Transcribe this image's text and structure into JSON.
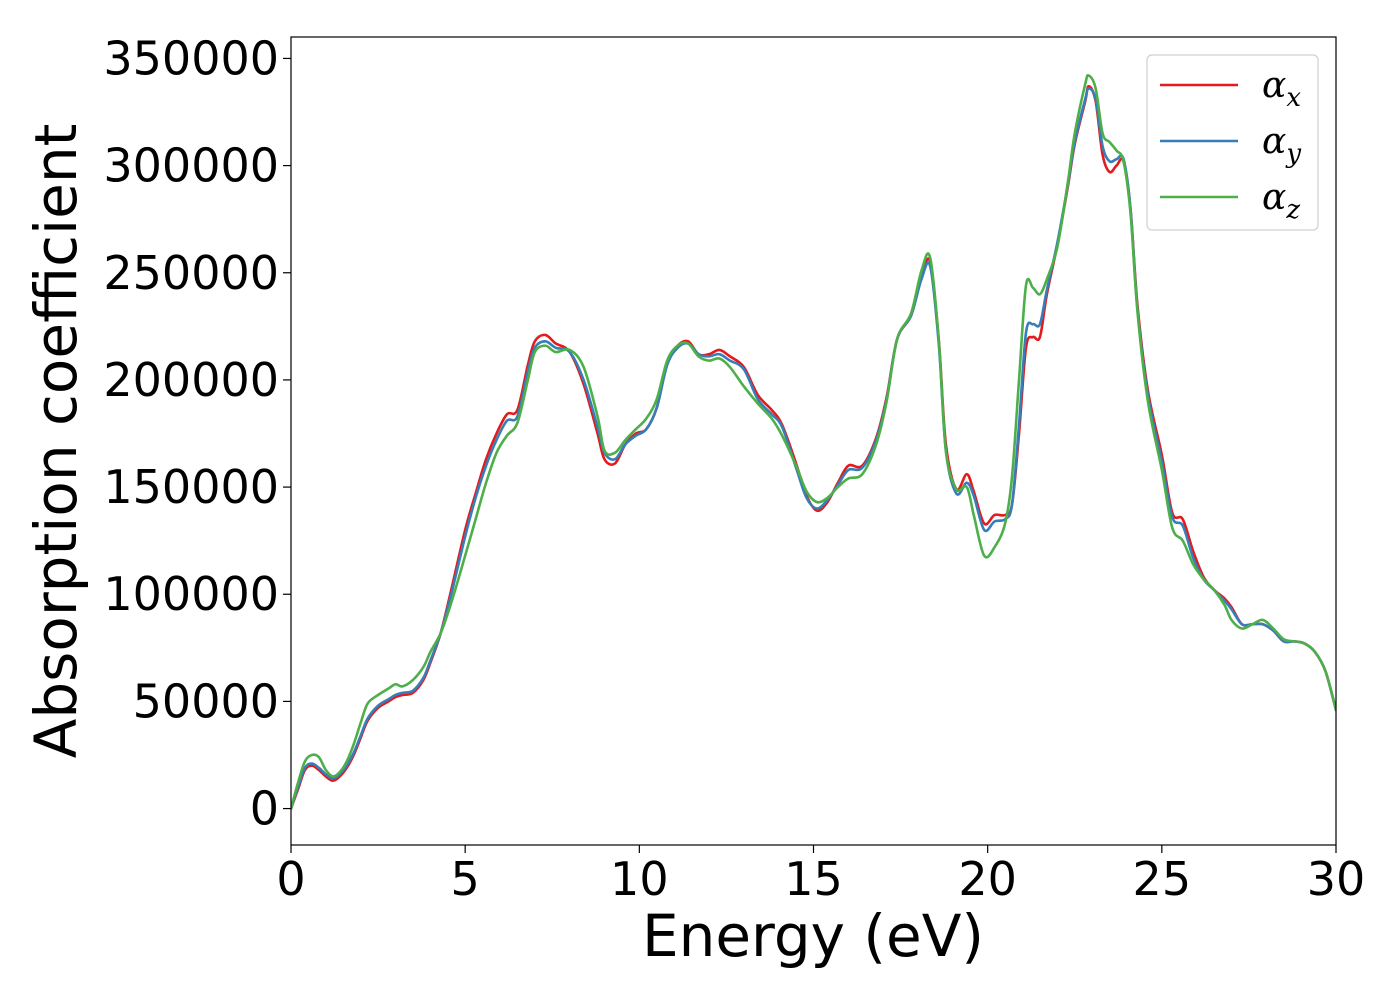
{
  "chart_data": {
    "type": "line",
    "title": "",
    "xlabel": "Energy (eV)",
    "ylabel": "Absorption coefficient",
    "xlim": [
      0,
      30
    ],
    "ylim": [
      -17000,
      360000
    ],
    "xticks": [
      0,
      5,
      10,
      15,
      20,
      25,
      30
    ],
    "yticks": [
      0,
      50000,
      100000,
      150000,
      200000,
      250000,
      300000,
      350000
    ],
    "grid": false,
    "legend_position": "top-right",
    "series": [
      {
        "name": "α_x",
        "base": "α",
        "sub": "x",
        "color": "#e41a1c",
        "x": [
          0,
          0.2,
          0.4,
          0.6,
          0.8,
          1.0,
          1.2,
          1.4,
          1.6,
          1.8,
          2.0,
          2.2,
          2.5,
          2.8,
          3.0,
          3.2,
          3.5,
          3.8,
          4.0,
          4.3,
          4.6,
          5.0,
          5.3,
          5.6,
          5.9,
          6.2,
          6.5,
          6.8,
          7.0,
          7.3,
          7.6,
          8.0,
          8.4,
          8.8,
          9.0,
          9.3,
          9.6,
          9.9,
          10.2,
          10.5,
          10.8,
          11.1,
          11.4,
          11.7,
          12.0,
          12.3,
          12.6,
          13.0,
          13.4,
          13.8,
          14.1,
          14.5,
          14.8,
          15.1,
          15.4,
          15.7,
          16.0,
          16.4,
          16.8,
          17.1,
          17.4,
          17.8,
          18.1,
          18.35,
          18.6,
          18.8,
          19.1,
          19.4,
          19.6,
          19.9,
          20.2,
          20.5,
          20.7,
          20.9,
          21.1,
          21.3,
          21.5,
          21.7,
          22.0,
          22.3,
          22.5,
          22.8,
          22.9,
          23.1,
          23.3,
          23.5,
          23.7,
          23.9,
          24.1,
          24.3,
          24.6,
          25.0,
          25.3,
          25.6,
          25.9,
          26.2,
          26.5,
          26.8,
          27.0,
          27.3,
          27.6,
          27.9,
          28.2,
          28.5,
          28.8,
          29.1,
          29.4,
          29.7,
          30.0
        ],
        "y": [
          0,
          9000,
          18000,
          20000,
          18000,
          15000,
          13000,
          15000,
          19000,
          25000,
          33000,
          41000,
          47000,
          50000,
          52000,
          53000,
          54000,
          60000,
          68000,
          82000,
          102000,
          130000,
          147000,
          163000,
          175000,
          184000,
          186000,
          207000,
          218000,
          221000,
          217000,
          213000,
          198000,
          175000,
          163000,
          161000,
          170000,
          175000,
          177000,
          187000,
          208000,
          216000,
          218000,
          212000,
          212000,
          214000,
          211000,
          206000,
          193000,
          186000,
          179000,
          161000,
          146000,
          139000,
          143000,
          152000,
          160000,
          160000,
          173000,
          192000,
          219000,
          230000,
          248000,
          255000,
          218000,
          170000,
          149000,
          156000,
          148000,
          133000,
          137000,
          137000,
          142000,
          175000,
          215000,
          220000,
          220000,
          240000,
          263000,
          290000,
          310000,
          330000,
          337000,
          330000,
          305000,
          297000,
          300000,
          302000,
          280000,
          235000,
          195000,
          165000,
          138000,
          135000,
          120000,
          108000,
          102000,
          98000,
          94000,
          86000,
          86000,
          86000,
          83000,
          78000,
          78000,
          77000,
          73000,
          64000,
          46000
        ]
      },
      {
        "name": "α_y",
        "base": "α",
        "sub": "y",
        "color": "#377eb8",
        "x": [
          0,
          0.2,
          0.4,
          0.6,
          0.8,
          1.0,
          1.2,
          1.4,
          1.6,
          1.8,
          2.0,
          2.2,
          2.5,
          2.8,
          3.0,
          3.2,
          3.5,
          3.8,
          4.0,
          4.3,
          4.6,
          5.0,
          5.3,
          5.6,
          5.9,
          6.2,
          6.5,
          6.8,
          7.0,
          7.3,
          7.6,
          8.0,
          8.4,
          8.8,
          9.0,
          9.3,
          9.6,
          9.9,
          10.2,
          10.5,
          10.8,
          11.1,
          11.4,
          11.7,
          12.0,
          12.3,
          12.6,
          13.0,
          13.4,
          13.8,
          14.1,
          14.5,
          14.8,
          15.1,
          15.4,
          15.7,
          16.0,
          16.4,
          16.8,
          17.1,
          17.4,
          17.8,
          18.1,
          18.35,
          18.6,
          18.8,
          19.1,
          19.4,
          19.6,
          19.9,
          20.2,
          20.5,
          20.7,
          20.9,
          21.1,
          21.3,
          21.5,
          21.7,
          22.0,
          22.3,
          22.5,
          22.8,
          22.9,
          23.1,
          23.3,
          23.5,
          23.7,
          23.9,
          24.1,
          24.3,
          24.6,
          25.0,
          25.3,
          25.6,
          25.9,
          26.2,
          26.5,
          26.8,
          27.0,
          27.3,
          27.6,
          27.9,
          28.2,
          28.5,
          28.8,
          29.1,
          29.4,
          29.7,
          30.0
        ],
        "y": [
          0,
          10000,
          19000,
          21000,
          19000,
          16000,
          14000,
          16000,
          20000,
          26000,
          34000,
          42000,
          48000,
          51000,
          53000,
          54000,
          55000,
          61000,
          69000,
          82000,
          100000,
          127000,
          145000,
          160000,
          172000,
          181000,
          183000,
          204000,
          215000,
          218000,
          215000,
          213000,
          200000,
          178000,
          166000,
          163000,
          170000,
          174000,
          177000,
          187000,
          207000,
          215000,
          217000,
          212000,
          211000,
          212000,
          209000,
          205000,
          191000,
          184000,
          178000,
          159000,
          145000,
          140000,
          144000,
          151000,
          158000,
          159000,
          172000,
          191000,
          219000,
          230000,
          247000,
          253000,
          216000,
          167000,
          147000,
          152000,
          146000,
          130000,
          134000,
          135000,
          142000,
          179000,
          222000,
          226000,
          226000,
          242000,
          264000,
          291000,
          311000,
          331000,
          336000,
          331000,
          309000,
          302000,
          303000,
          303000,
          280000,
          233000,
          193000,
          162000,
          136000,
          132000,
          117000,
          107000,
          102000,
          97000,
          93000,
          86000,
          86000,
          86000,
          83000,
          78000,
          78000,
          77000,
          73000,
          64000,
          46000
        ]
      },
      {
        "name": "α_z",
        "base": "α",
        "sub": "z",
        "color": "#4daf4a",
        "x": [
          0,
          0.2,
          0.4,
          0.6,
          0.8,
          1.0,
          1.2,
          1.4,
          1.6,
          1.8,
          2.0,
          2.2,
          2.5,
          2.8,
          3.0,
          3.2,
          3.5,
          3.8,
          4.0,
          4.3,
          4.6,
          5.0,
          5.3,
          5.6,
          5.9,
          6.2,
          6.5,
          6.8,
          7.0,
          7.3,
          7.6,
          8.0,
          8.4,
          8.8,
          9.0,
          9.3,
          9.6,
          9.9,
          10.2,
          10.5,
          10.8,
          11.1,
          11.4,
          11.7,
          12.0,
          12.3,
          12.6,
          13.0,
          13.4,
          13.8,
          14.1,
          14.5,
          14.8,
          15.1,
          15.4,
          15.7,
          16.0,
          16.4,
          16.8,
          17.1,
          17.4,
          17.8,
          18.1,
          18.35,
          18.6,
          18.8,
          19.1,
          19.4,
          19.6,
          19.9,
          20.2,
          20.5,
          20.7,
          20.9,
          21.1,
          21.3,
          21.5,
          21.7,
          22.0,
          22.3,
          22.5,
          22.8,
          22.9,
          23.1,
          23.3,
          23.5,
          23.7,
          23.9,
          24.1,
          24.3,
          24.6,
          25.0,
          25.3,
          25.6,
          25.9,
          26.2,
          26.5,
          26.8,
          27.0,
          27.3,
          27.6,
          27.9,
          28.2,
          28.5,
          28.8,
          29.1,
          29.4,
          29.7,
          30.0
        ],
        "y": [
          0,
          12000,
          22000,
          25000,
          24000,
          18000,
          15000,
          17000,
          22000,
          30000,
          40000,
          49000,
          53000,
          56000,
          58000,
          57000,
          60000,
          66000,
          73000,
          82000,
          96000,
          118000,
          135000,
          152000,
          166000,
          174000,
          180000,
          200000,
          213000,
          216000,
          213000,
          214000,
          206000,
          183000,
          167000,
          166000,
          172000,
          177000,
          182000,
          191000,
          209000,
          216000,
          217000,
          211000,
          209000,
          210000,
          206000,
          197000,
          189000,
          182000,
          174000,
          160000,
          148000,
          143000,
          145000,
          150000,
          154000,
          156000,
          170000,
          190000,
          219000,
          231000,
          251000,
          257000,
          218000,
          167000,
          149000,
          150000,
          137000,
          118000,
          122000,
          133000,
          155000,
          200000,
          244000,
          243000,
          240000,
          247000,
          262000,
          292000,
          315000,
          338000,
          342000,
          336000,
          315000,
          311000,
          307000,
          302000,
          278000,
          232000,
          190000,
          158000,
          131000,
          125000,
          114000,
          107000,
          102000,
          95000,
          88000,
          84000,
          86000,
          88000,
          84000,
          79000,
          78000,
          77000,
          73000,
          64000,
          46000
        ]
      }
    ]
  }
}
